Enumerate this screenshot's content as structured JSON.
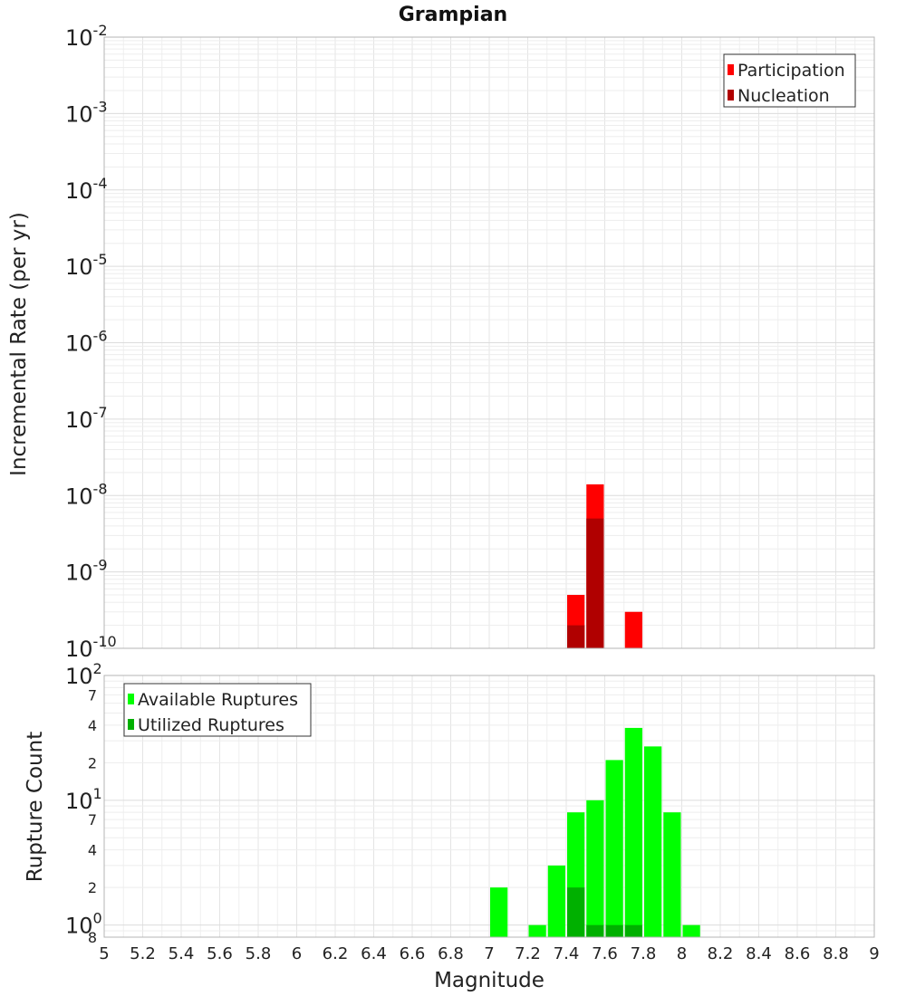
{
  "chart_data": [
    {
      "type": "bar",
      "title": "Grampian",
      "ylabel": "Incremental Rate (per yr)",
      "yscale": "log",
      "ylim": [
        1e-10,
        0.01
      ],
      "xlim": [
        5,
        9
      ],
      "grid": true,
      "legend_position": "top-right",
      "y_tick_labels": [
        {
          "base": "10",
          "exp": "-2"
        },
        {
          "base": "10",
          "exp": "-3"
        },
        {
          "base": "10",
          "exp": "-4"
        },
        {
          "base": "10",
          "exp": "-5"
        },
        {
          "base": "10",
          "exp": "-6"
        },
        {
          "base": "10",
          "exp": "-7"
        },
        {
          "base": "10",
          "exp": "-8"
        },
        {
          "base": "10",
          "exp": "-9"
        },
        {
          "base": "10",
          "exp": "-10"
        }
      ],
      "series": [
        {
          "name": "Participation",
          "color": "#ff0000",
          "x": [
            7.45,
            7.55,
            7.75
          ],
          "values": [
            5e-10,
            1.4e-08,
            3e-10
          ]
        },
        {
          "name": "Nucleation",
          "color": "#b00000",
          "x": [
            7.45,
            7.55
          ],
          "values": [
            2e-10,
            5e-09
          ]
        }
      ]
    },
    {
      "type": "bar",
      "ylabel": "Rupture Count",
      "xlabel": "Magnitude",
      "yscale": "log",
      "ylim": [
        0.8,
        100
      ],
      "xlim": [
        5,
        9
      ],
      "grid": true,
      "legend_position": "top-left",
      "x_tick_labels": [
        "5",
        "5.2",
        "5.4",
        "5.6",
        "5.8",
        "6",
        "6.2",
        "6.4",
        "6.6",
        "6.8",
        "7",
        "7.2",
        "7.4",
        "7.6",
        "7.8",
        "8",
        "8.2",
        "8.4",
        "8.6",
        "8.8",
        "9"
      ],
      "y_major_labels": [
        {
          "base": "10",
          "exp": "2"
        },
        {
          "base": "10",
          "exp": "1"
        },
        {
          "base": "10",
          "exp": "0"
        }
      ],
      "y_minor_labels": [
        "7",
        "4",
        "2",
        "7",
        "4",
        "2",
        "8"
      ],
      "series": [
        {
          "name": "Available Ruptures",
          "color": "#00ff00",
          "x": [
            7.05,
            7.25,
            7.35,
            7.45,
            7.55,
            7.65,
            7.75,
            7.85,
            7.95,
            8.05
          ],
          "values": [
            2,
            1,
            3,
            8,
            10,
            21,
            38,
            27,
            8,
            1
          ]
        },
        {
          "name": "Utilized Ruptures",
          "color": "#00b000",
          "x": [
            7.45,
            7.55,
            7.65,
            7.75
          ],
          "values": [
            2,
            1,
            1,
            1
          ]
        }
      ]
    }
  ]
}
